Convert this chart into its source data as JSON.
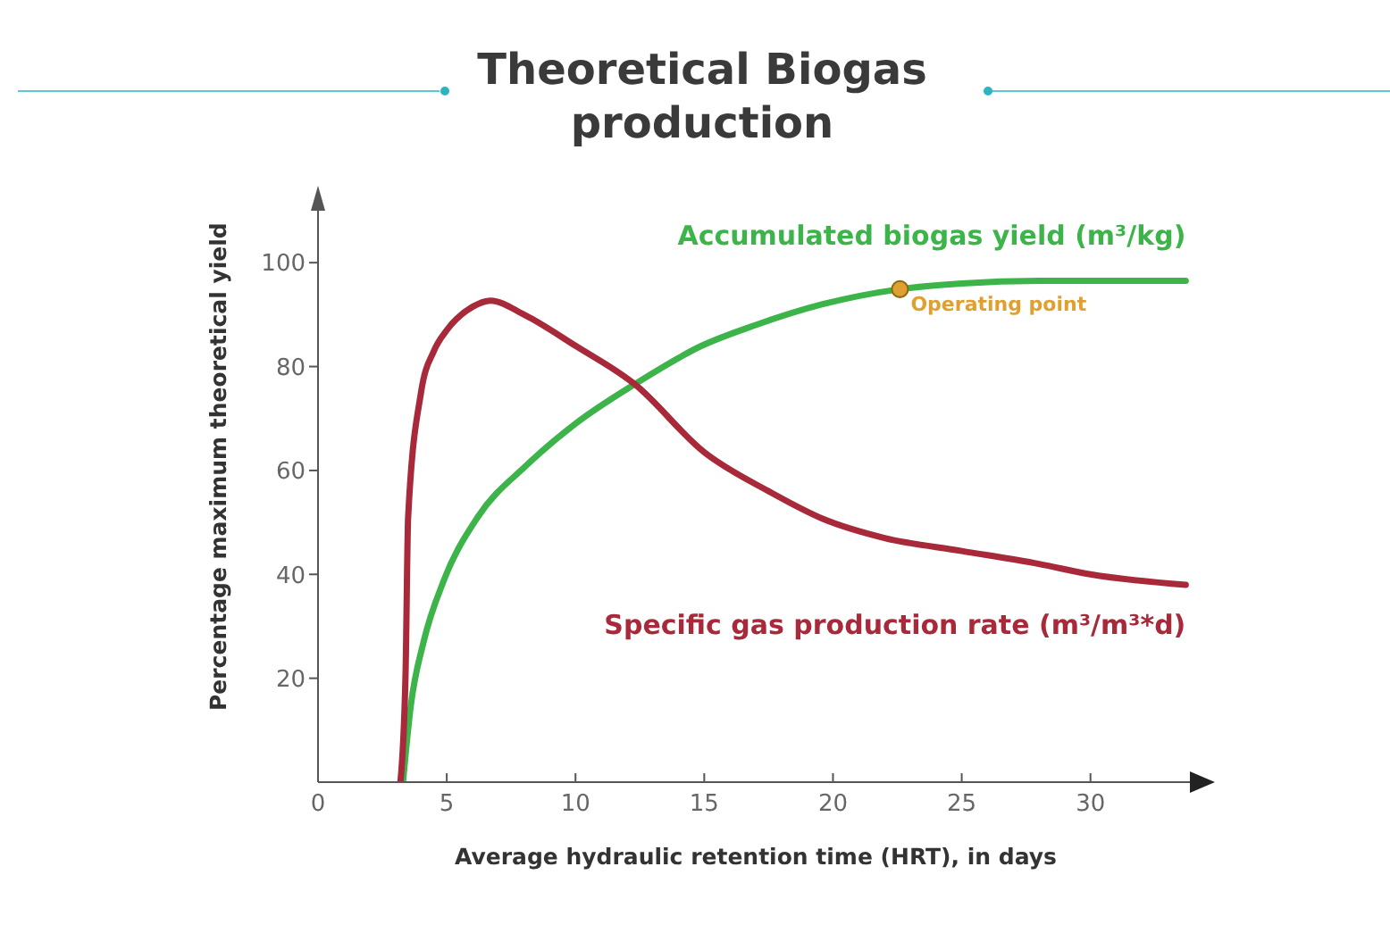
{
  "chart_data": {
    "type": "line",
    "title": "Theoretical Biogas production",
    "xlabel": "Average hydraulic retention time (HRT), in days",
    "ylabel": "Percentage maximum theoretical yield",
    "xlim": [
      0,
      34
    ],
    "xticks": [
      0,
      5,
      10,
      15,
      20,
      25,
      30
    ],
    "ylim": [
      0,
      110
    ],
    "yticks": [
      20,
      40,
      60,
      80,
      100
    ],
    "grid": false,
    "legend": false,
    "series": [
      {
        "name": "Accumulated biogas yield (m³/kg)",
        "color": "#3cb44a",
        "x": [
          3.3,
          3.6,
          4.1,
          4.9,
          6.2,
          8.1,
          10,
          12.3,
          14.9,
          17,
          19.6,
          22.6,
          25,
          28,
          33.7
        ],
        "values": [
          0,
          14.6,
          27,
          39,
          51,
          61,
          69,
          76.6,
          84,
          88,
          92,
          94.9,
          96,
          96.5,
          96.5
        ]
      },
      {
        "name": "Specific gas production rate (m³/m³*d)",
        "color": "#a8293a",
        "x": [
          3.2,
          3.4,
          3.5,
          4,
          4.5,
          5,
          6,
          6.7,
          8,
          10,
          12.3,
          15,
          17.5,
          19.6,
          22,
          25,
          28,
          30,
          33.7
        ],
        "values": [
          0,
          21,
          51,
          75,
          83,
          87,
          91.5,
          92.7,
          90,
          84,
          76.6,
          63.5,
          56,
          50.7,
          47,
          44.5,
          42,
          40,
          38
        ]
      },
      {
        "name": "Operating point",
        "type": "scatter",
        "color": "#e0a030",
        "x": [
          22.6
        ],
        "values": [
          94.9
        ]
      }
    ]
  }
}
